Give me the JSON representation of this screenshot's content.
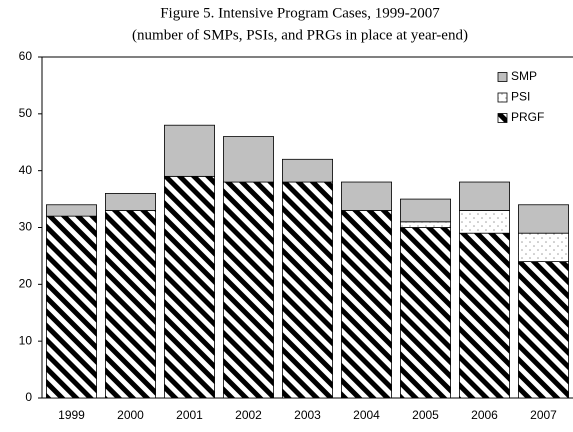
{
  "chart_data": {
    "type": "stacked_bar",
    "title": "Figure 5. Intensive Program Cases, 1999-2007",
    "subtitle": "(number of SMPs, PSIs, and PRGs in place at year-end)",
    "categories": [
      "1999",
      "2000",
      "2001",
      "2002",
      "2003",
      "2004",
      "2005",
      "2006",
      "2007"
    ],
    "series": [
      {
        "name": "SMP",
        "color": "#c0c0c0",
        "pattern": "solid",
        "values": [
          2,
          3,
          9,
          8,
          4,
          5,
          4,
          5,
          5
        ]
      },
      {
        "name": "PSI",
        "color": "#a0a0a0",
        "pattern": "dots",
        "values": [
          0,
          0,
          0,
          0,
          0,
          0,
          1,
          4,
          5
        ]
      },
      {
        "name": "PRGF",
        "color": "#000000",
        "pattern": "hatch",
        "values": [
          32,
          33,
          39,
          38,
          38,
          33,
          30,
          29,
          24
        ]
      }
    ],
    "ylim": [
      0,
      60
    ],
    "yticks": [
      0,
      10,
      20,
      30,
      40,
      50,
      60
    ]
  }
}
